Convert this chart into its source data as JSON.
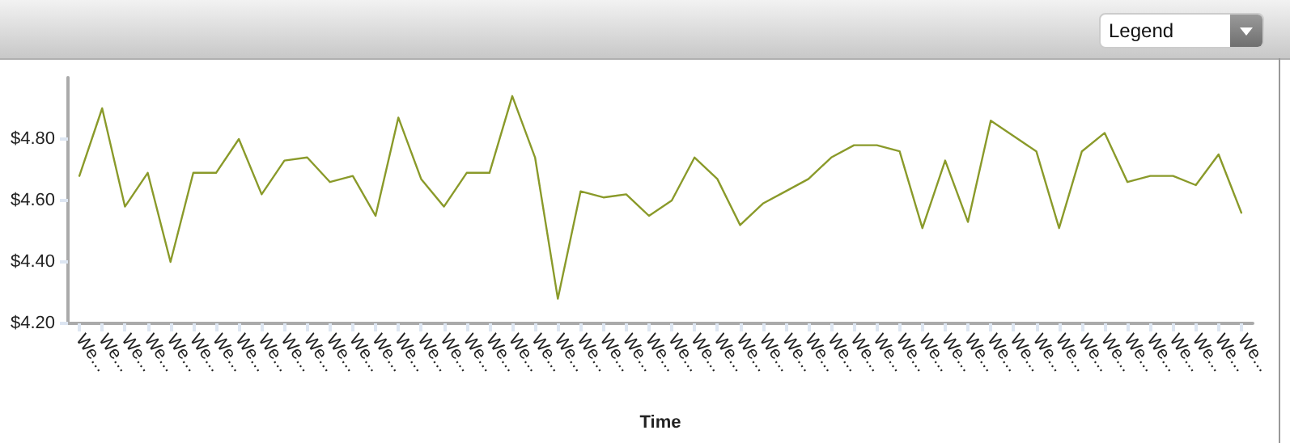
{
  "chart_data": {
    "type": "line",
    "xlabel": "Time",
    "annotations": [
      "Legend"
    ],
    "categories": [
      "We...",
      "We...",
      "We...",
      "We...",
      "We...",
      "We...",
      "We...",
      "We...",
      "We...",
      "We...",
      "We...",
      "We...",
      "We...",
      "We...",
      "We...",
      "We...",
      "We...",
      "We...",
      "We...",
      "We...",
      "We...",
      "We...",
      "We...",
      "We...",
      "We...",
      "We...",
      "We...",
      "We...",
      "We...",
      "We...",
      "We...",
      "We...",
      "We...",
      "We...",
      "We...",
      "We...",
      "We...",
      "We...",
      "We...",
      "We...",
      "We...",
      "We...",
      "We...",
      "We...",
      "We...",
      "We...",
      "We...",
      "We...",
      "We...",
      "We...",
      "We...",
      "We..."
    ],
    "series": [
      {
        "color": "#8a9a2a",
        "values": [
          4.68,
          4.9,
          4.58,
          4.69,
          4.4,
          4.69,
          4.69,
          4.8,
          4.62,
          4.73,
          4.74,
          4.66,
          4.68,
          4.55,
          4.87,
          4.67,
          4.58,
          4.69,
          4.69,
          4.94,
          4.74,
          4.28,
          4.63,
          4.61,
          4.62,
          4.55,
          4.6,
          4.74,
          4.67,
          4.52,
          4.59,
          4.63,
          4.67,
          4.74,
          4.78,
          4.78,
          4.76,
          4.51,
          4.73,
          4.53,
          4.86,
          4.81,
          4.76,
          4.51,
          4.76,
          4.82,
          4.66,
          4.68,
          4.68,
          4.65,
          4.75,
          4.56
        ]
      }
    ],
    "ylim": [
      4.2,
      5.0
    ],
    "yticks": [
      {
        "value": 4.2,
        "label": "$4.20"
      },
      {
        "value": 4.4,
        "label": "$4.40"
      },
      {
        "value": 4.6,
        "label": "$4.60"
      },
      {
        "value": 4.8,
        "label": "$4.80"
      }
    ],
    "grid": false,
    "marker": "none",
    "line_style": "solid"
  }
}
